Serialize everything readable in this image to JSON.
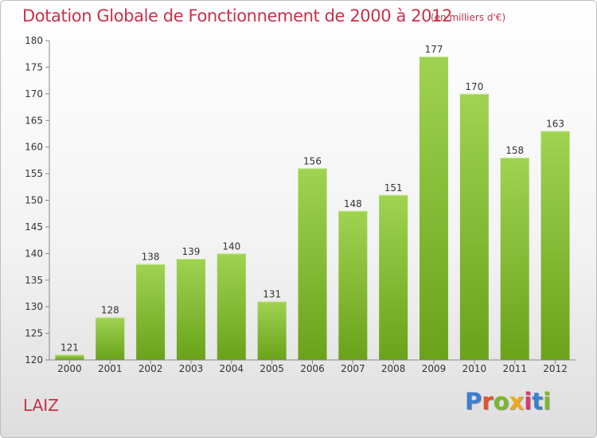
{
  "title": "Dotation Globale de Fonctionnement de 2000 à 2012",
  "unit_note": "(en milliers d'€)",
  "commune": "LAIZ",
  "logo": {
    "text": "Proxiti",
    "letter_colors": [
      "#3a7fd0",
      "#e0542a",
      "#7bb82b",
      "#f2a81d",
      "#d8386e",
      "#3a7fd0",
      "#7bb82b"
    ]
  },
  "colors": {
    "title": "#c8304a",
    "bar_light": "#9fd351",
    "bar_dark": "#6aa21a"
  },
  "chart_data": {
    "type": "bar",
    "categories": [
      "2000",
      "2001",
      "2002",
      "2003",
      "2004",
      "2005",
      "2006",
      "2007",
      "2008",
      "2009",
      "2010",
      "2011",
      "2012"
    ],
    "values": [
      121,
      128,
      138,
      139,
      140,
      131,
      156,
      148,
      151,
      177,
      170,
      158,
      163
    ],
    "data_labels": [
      "121",
      "128",
      "138",
      "139",
      "140",
      "131",
      "156",
      "148",
      "151",
      "177",
      "170",
      "158",
      "163"
    ],
    "ylim": [
      120,
      180
    ],
    "yticks": [
      "120",
      "125",
      "130",
      "135",
      "140",
      "145",
      "150",
      "155",
      "160",
      "165",
      "170",
      "175",
      "180"
    ],
    "grid": false
  }
}
